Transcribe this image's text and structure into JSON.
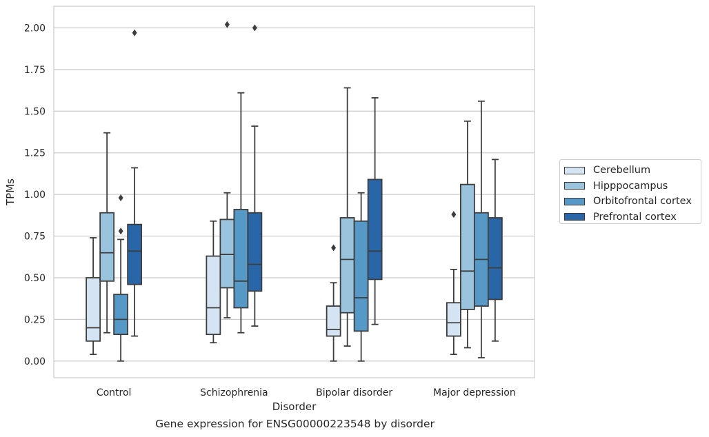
{
  "chart_data": {
    "type": "box",
    "caption": "Gene expression for ENSG00000223548 by disorder",
    "xlabel": "Disorder",
    "ylabel": "TPMs",
    "ylim": [
      -0.1,
      2.13
    ],
    "yticks": [
      "0.00",
      "0.25",
      "0.50",
      "0.75",
      "1.00",
      "1.25",
      "1.50",
      "1.75",
      "2.00"
    ],
    "grid": true,
    "legend_position": "right",
    "categories": [
      "Control",
      "Schizophrenia",
      "Bipolar disorder",
      "Major depression"
    ],
    "series": [
      {
        "name": "Cerebellum",
        "color": "#d4e4f2",
        "boxes": [
          {
            "whisker_low": 0.04,
            "q1": 0.12,
            "median": 0.2,
            "q3": 0.5,
            "whisker_high": 0.74,
            "outliers": []
          },
          {
            "whisker_low": 0.11,
            "q1": 0.16,
            "median": 0.32,
            "q3": 0.63,
            "whisker_high": 0.84,
            "outliers": []
          },
          {
            "whisker_low": 0.0,
            "q1": 0.15,
            "median": 0.19,
            "q3": 0.33,
            "whisker_high": 0.47,
            "outliers": [
              0.68
            ]
          },
          {
            "whisker_low": 0.04,
            "q1": 0.15,
            "median": 0.23,
            "q3": 0.35,
            "whisker_high": 0.55,
            "outliers": [
              0.88
            ]
          }
        ]
      },
      {
        "name": "Hipppocampus",
        "color": "#9ac4de",
        "boxes": [
          {
            "whisker_low": 0.17,
            "q1": 0.48,
            "median": 0.65,
            "q3": 0.89,
            "whisker_high": 1.37,
            "outliers": []
          },
          {
            "whisker_low": 0.26,
            "q1": 0.44,
            "median": 0.64,
            "q3": 0.85,
            "whisker_high": 1.01,
            "outliers": [
              2.02
            ]
          },
          {
            "whisker_low": 0.09,
            "q1": 0.29,
            "median": 0.61,
            "q3": 0.86,
            "whisker_high": 1.64,
            "outliers": []
          },
          {
            "whisker_low": 0.08,
            "q1": 0.31,
            "median": 0.54,
            "q3": 1.06,
            "whisker_high": 1.44,
            "outliers": []
          }
        ]
      },
      {
        "name": "Orbitofrontal cortex",
        "color": "#5799c6",
        "boxes": [
          {
            "whisker_low": 0.0,
            "q1": 0.16,
            "median": 0.25,
            "q3": 0.4,
            "whisker_high": 0.73,
            "outliers": [
              0.78,
              0.98
            ]
          },
          {
            "whisker_low": 0.17,
            "q1": 0.32,
            "median": 0.48,
            "q3": 0.91,
            "whisker_high": 1.61,
            "outliers": []
          },
          {
            "whisker_low": 0.0,
            "q1": 0.18,
            "median": 0.38,
            "q3": 0.84,
            "whisker_high": 1.01,
            "outliers": []
          },
          {
            "whisker_low": 0.02,
            "q1": 0.33,
            "median": 0.61,
            "q3": 0.89,
            "whisker_high": 1.56,
            "outliers": []
          }
        ]
      },
      {
        "name": "Prefrontal cortex",
        "color": "#2866a8",
        "boxes": [
          {
            "whisker_low": 0.15,
            "q1": 0.46,
            "median": 0.66,
            "q3": 0.82,
            "whisker_high": 1.16,
            "outliers": [
              1.97
            ]
          },
          {
            "whisker_low": 0.21,
            "q1": 0.42,
            "median": 0.58,
            "q3": 0.89,
            "whisker_high": 1.41,
            "outliers": [
              2.0
            ]
          },
          {
            "whisker_low": 0.22,
            "q1": 0.49,
            "median": 0.66,
            "q3": 1.09,
            "whisker_high": 1.58,
            "outliers": []
          },
          {
            "whisker_low": 0.12,
            "q1": 0.37,
            "median": 0.56,
            "q3": 0.86,
            "whisker_high": 1.21,
            "outliers": []
          }
        ]
      }
    ]
  }
}
